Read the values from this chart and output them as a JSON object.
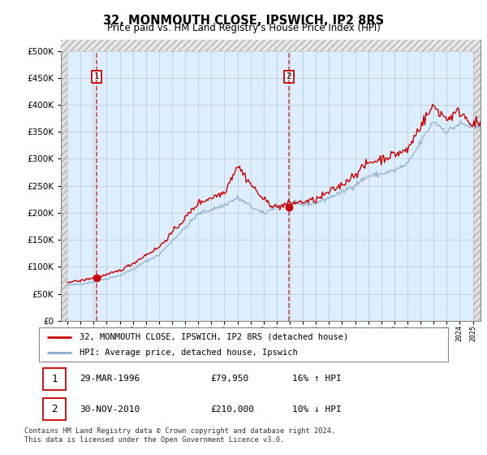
{
  "title": "32, MONMOUTH CLOSE, IPSWICH, IP2 8RS",
  "subtitle": "Price paid vs. HM Land Registry's House Price Index (HPI)",
  "legend_line1": "32, MONMOUTH CLOSE, IPSWICH, IP2 8RS (detached house)",
  "legend_line2": "HPI: Average price, detached house, Ipswich",
  "annotation1_date": "29-MAR-1996",
  "annotation1_price": "£79,950",
  "annotation1_hpi": "16% ↑ HPI",
  "annotation2_date": "30-NOV-2010",
  "annotation2_price": "£210,000",
  "annotation2_hpi": "10% ↓ HPI",
  "footer": "Contains HM Land Registry data © Crown copyright and database right 2024.\nThis data is licensed under the Open Government Licence v3.0.",
  "sale1_year": 1996.25,
  "sale1_price": 79950,
  "sale2_year": 2010.92,
  "sale2_price": 210000,
  "red_color": "#cc0000",
  "blue_color": "#88aacc",
  "background_color": "#ddeeff",
  "hatch_bg": "#e8e8e8",
  "ylim_max": 520000,
  "xstart": 1993.5,
  "xend": 2025.6,
  "hpi_years": [
    1994,
    1995,
    1996,
    1997,
    1998,
    1999,
    2000,
    2001,
    2002,
    2003,
    2004,
    2005,
    2006,
    2007,
    2008,
    2009,
    2010,
    2011,
    2012,
    2013,
    2014,
    2015,
    2016,
    2017,
    2018,
    2019,
    2020,
    2021,
    2022,
    2023,
    2024,
    2025
  ],
  "hpi_values": [
    66000,
    68000,
    72000,
    78000,
    84000,
    95000,
    110000,
    122000,
    148000,
    172000,
    198000,
    206000,
    214000,
    228000,
    212000,
    198000,
    212000,
    215000,
    215000,
    218000,
    228000,
    238000,
    252000,
    268000,
    272000,
    278000,
    290000,
    330000,
    370000,
    350000,
    365000,
    358000
  ],
  "red_years": [
    1994,
    1995,
    1996,
    1997,
    1998,
    1999,
    2000,
    2001,
    2002,
    2003,
    2004,
    2005,
    2006,
    2007,
    2008,
    2009,
    2010,
    2011,
    2012,
    2013,
    2014,
    2015,
    2016,
    2017,
    2018,
    2019,
    2020,
    2021,
    2022,
    2023,
    2024,
    2025
  ],
  "red_values": [
    72000,
    74000,
    79950,
    85000,
    93000,
    106000,
    122000,
    136000,
    163000,
    190000,
    218000,
    228000,
    238000,
    288000,
    254000,
    224000,
    210000,
    218000,
    220000,
    224000,
    238000,
    252000,
    272000,
    292000,
    300000,
    308000,
    316000,
    362000,
    398000,
    374000,
    388000,
    365000
  ]
}
